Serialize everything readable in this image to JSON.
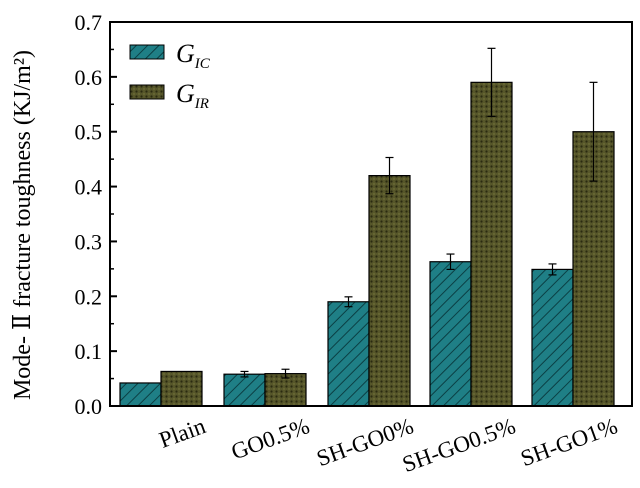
{
  "chart_data": {
    "type": "bar",
    "categories": [
      "Plain",
      "GO0.5%",
      "SH-GO0%",
      "SH-GO0.5%",
      "SH-GO1%"
    ],
    "series": [
      {
        "name": "G_IC",
        "legend_main": "G",
        "legend_sub": "IC",
        "color": "#1f7f86",
        "pattern": "diagonal-hatch",
        "values": [
          0.042,
          0.058,
          0.19,
          0.263,
          0.249
        ],
        "errors": [
          0.0,
          0.005,
          0.009,
          0.014,
          0.01
        ]
      },
      {
        "name": "G_IR",
        "legend_main": "G",
        "legend_sub": "IR",
        "color": "#4a4a1c",
        "pattern": "dotted-crosshatch",
        "values": [
          0.063,
          0.059,
          0.42,
          0.59,
          0.5
        ],
        "errors": [
          0.0,
          0.008,
          0.033,
          0.062,
          0.09
        ]
      }
    ],
    "ylabel": "Mode- Ⅱ fracture toughness (KJ/m²)",
    "ylim": [
      0,
      0.7
    ],
    "yticks": [
      "0.0",
      "0.1",
      "0.2",
      "0.3",
      "0.4",
      "0.5",
      "0.6",
      "0.7"
    ],
    "legend_position": "top-left",
    "grid": false
  }
}
